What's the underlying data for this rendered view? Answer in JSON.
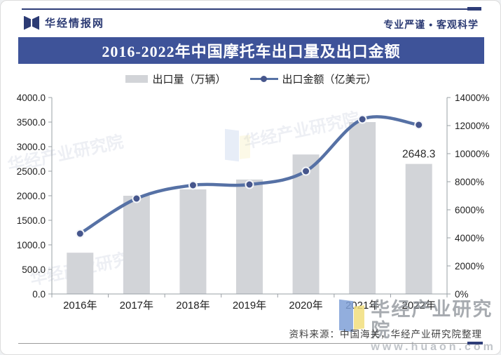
{
  "header": {
    "brand": "华经情报网",
    "slogan": "专业严谨 • 客观科学"
  },
  "title": "2016-2022年中国摩托车出口量及出口金额",
  "legend": [
    {
      "label": "出口量（万辆）",
      "type": "bar",
      "color": "#d2d4d8"
    },
    {
      "label": "出口金额（亿美元）",
      "type": "line",
      "color": "#5671a5"
    }
  ],
  "chart_data": {
    "type": "bar+line",
    "title": "2016-2022年中国摩托车出口量及出口金额",
    "categories": [
      "2016年",
      "2017年",
      "2018年",
      "2019年",
      "2020年",
      "2021年",
      "2022年"
    ],
    "series": [
      {
        "name": "出口量（万辆）",
        "type": "bar",
        "axis": "left",
        "values": [
          840,
          2000,
          2130,
          2330,
          2840,
          3500,
          2648.3
        ],
        "color": "#d2d4d8"
      },
      {
        "name": "出口金额（亿美元）",
        "type": "line",
        "axis": "right",
        "values": [
          4300,
          6800,
          7750,
          7800,
          8750,
          12450,
          12050
        ],
        "color": "#5671a5",
        "dot_color": "#46568c"
      }
    ],
    "left_axis": {
      "min": 0,
      "max": 4000,
      "step": 500,
      "tick_labels": [
        "0.0",
        "500.0",
        "1000.0",
        "1500.0",
        "2000.0",
        "2500.0",
        "3000.0",
        "3500.0",
        "4000.0"
      ]
    },
    "right_axis": {
      "min": 0,
      "max": 14000,
      "step": 2000,
      "tick_labels": [
        "0%",
        "2000%",
        "4000%",
        "6000%",
        "8000%",
        "10000%",
        "12000%",
        "14000%"
      ]
    },
    "data_labels": [
      {
        "category_index": 6,
        "text": "2648.3"
      }
    ],
    "grid": false,
    "legend_position": "top"
  },
  "watermark": {
    "brand": "华经产业研究院",
    "url": "www.huaon.com"
  },
  "source": "资料来源：中国海关，华经产业研究院整理"
}
